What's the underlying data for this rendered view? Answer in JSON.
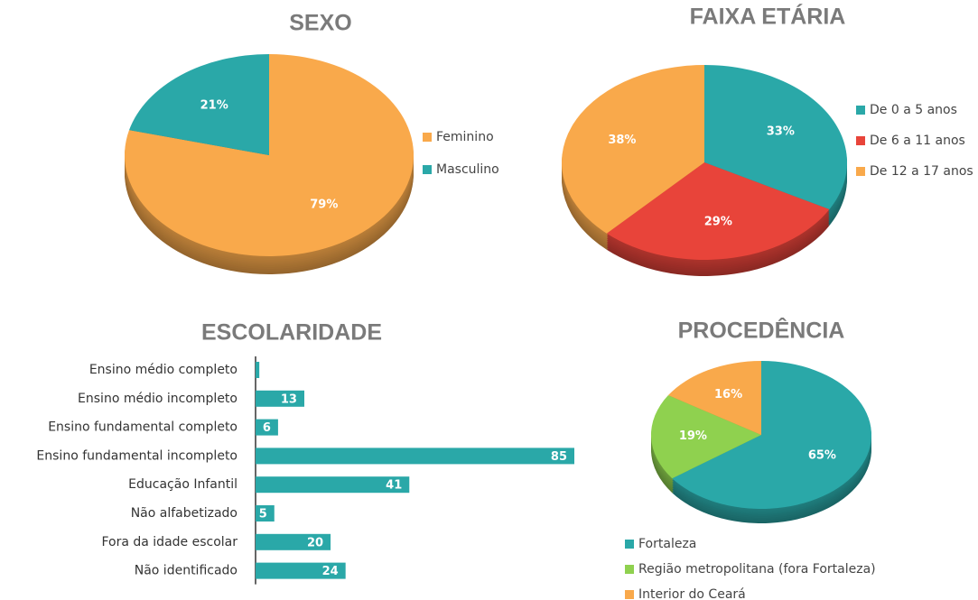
{
  "chart_data": [
    {
      "type": "pie",
      "title": "SEXO",
      "categories": [
        "Feminino",
        "Masculino"
      ],
      "values": [
        79,
        21
      ],
      "value_labels": [
        "79%",
        "21%"
      ],
      "colors": [
        "#f9a94b",
        "#2aa8a8"
      ]
    },
    {
      "type": "pie",
      "title": "FAIXA ETÁRIA",
      "categories": [
        "De 0 a 5 anos",
        "De 6 a 11 anos",
        "De 12 a 17 anos"
      ],
      "values": [
        33,
        29,
        38
      ],
      "value_labels": [
        "33%",
        "29%",
        "38%"
      ],
      "colors": [
        "#2aa8a8",
        "#e8443a",
        "#f9a94b"
      ]
    },
    {
      "type": "bar",
      "title": "ESCOLARIDADE",
      "orientation": "horizontal",
      "categories": [
        "Ensino médio completo",
        "Ensino médio incompleto",
        "Ensino fundamental completo",
        "Ensino fundamental incompleto",
        "Educação Infantil",
        "Não alfabetizado",
        "Fora da idade escolar",
        "Não identificado"
      ],
      "values": [
        1,
        13,
        6,
        85,
        41,
        5,
        20,
        24
      ],
      "color": "#2aa8a8"
    },
    {
      "type": "pie",
      "title": "PROCEDÊNCIA",
      "categories": [
        "Fortaleza",
        "Região metropolitana (fora Fortaleza)",
        "Interior do Ceará"
      ],
      "values": [
        65,
        19,
        16
      ],
      "value_labels": [
        "65%",
        "19%",
        "16%"
      ],
      "colors": [
        "#2aa8a8",
        "#8fd14f",
        "#f9a94b"
      ]
    }
  ]
}
